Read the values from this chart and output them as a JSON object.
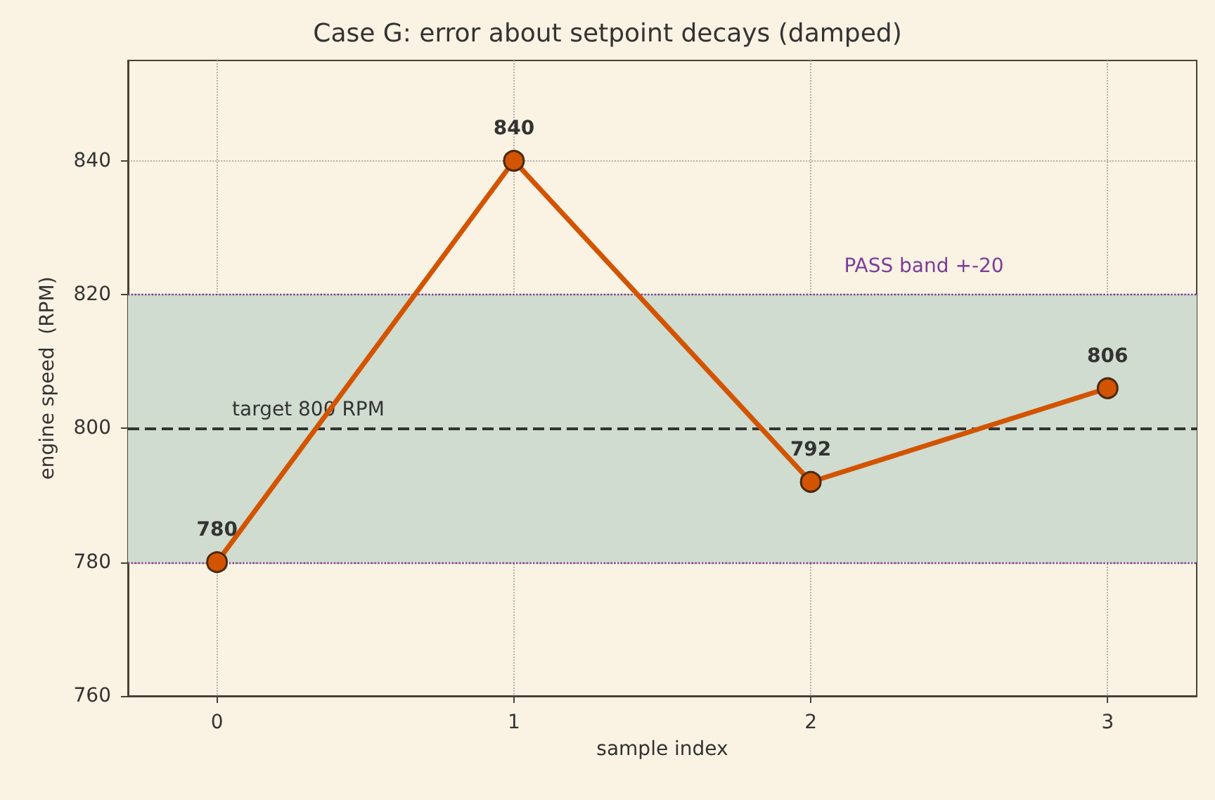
{
  "chart_data": {
    "type": "line",
    "title": "Case G: error about setpoint decays (damped)",
    "xlabel": "sample index",
    "ylabel": "engine speed  (RPM)",
    "x": [
      0,
      1,
      2,
      3
    ],
    "series": [
      {
        "color": "#d35400",
        "values": [
          780,
          840,
          792,
          806
        ]
      }
    ],
    "xlim": [
      -0.3,
      3.3
    ],
    "xticks": [
      0,
      1,
      2,
      3
    ],
    "ylim": [
      760,
      855
    ],
    "yticks": [
      760,
      780,
      800,
      820,
      840
    ],
    "ref_lines": [
      {
        "axis": "y",
        "value": 800,
        "label": "target 800 RPM",
        "color": "#333333",
        "line_style": "dashed"
      }
    ],
    "bands": [
      {
        "axis": "y",
        "from": 780,
        "to": 820,
        "label": "PASS band +-20",
        "color": "#cfdccf"
      }
    ],
    "data_labels": true,
    "grid": true,
    "marker": "circle",
    "line_style": "solid"
  }
}
